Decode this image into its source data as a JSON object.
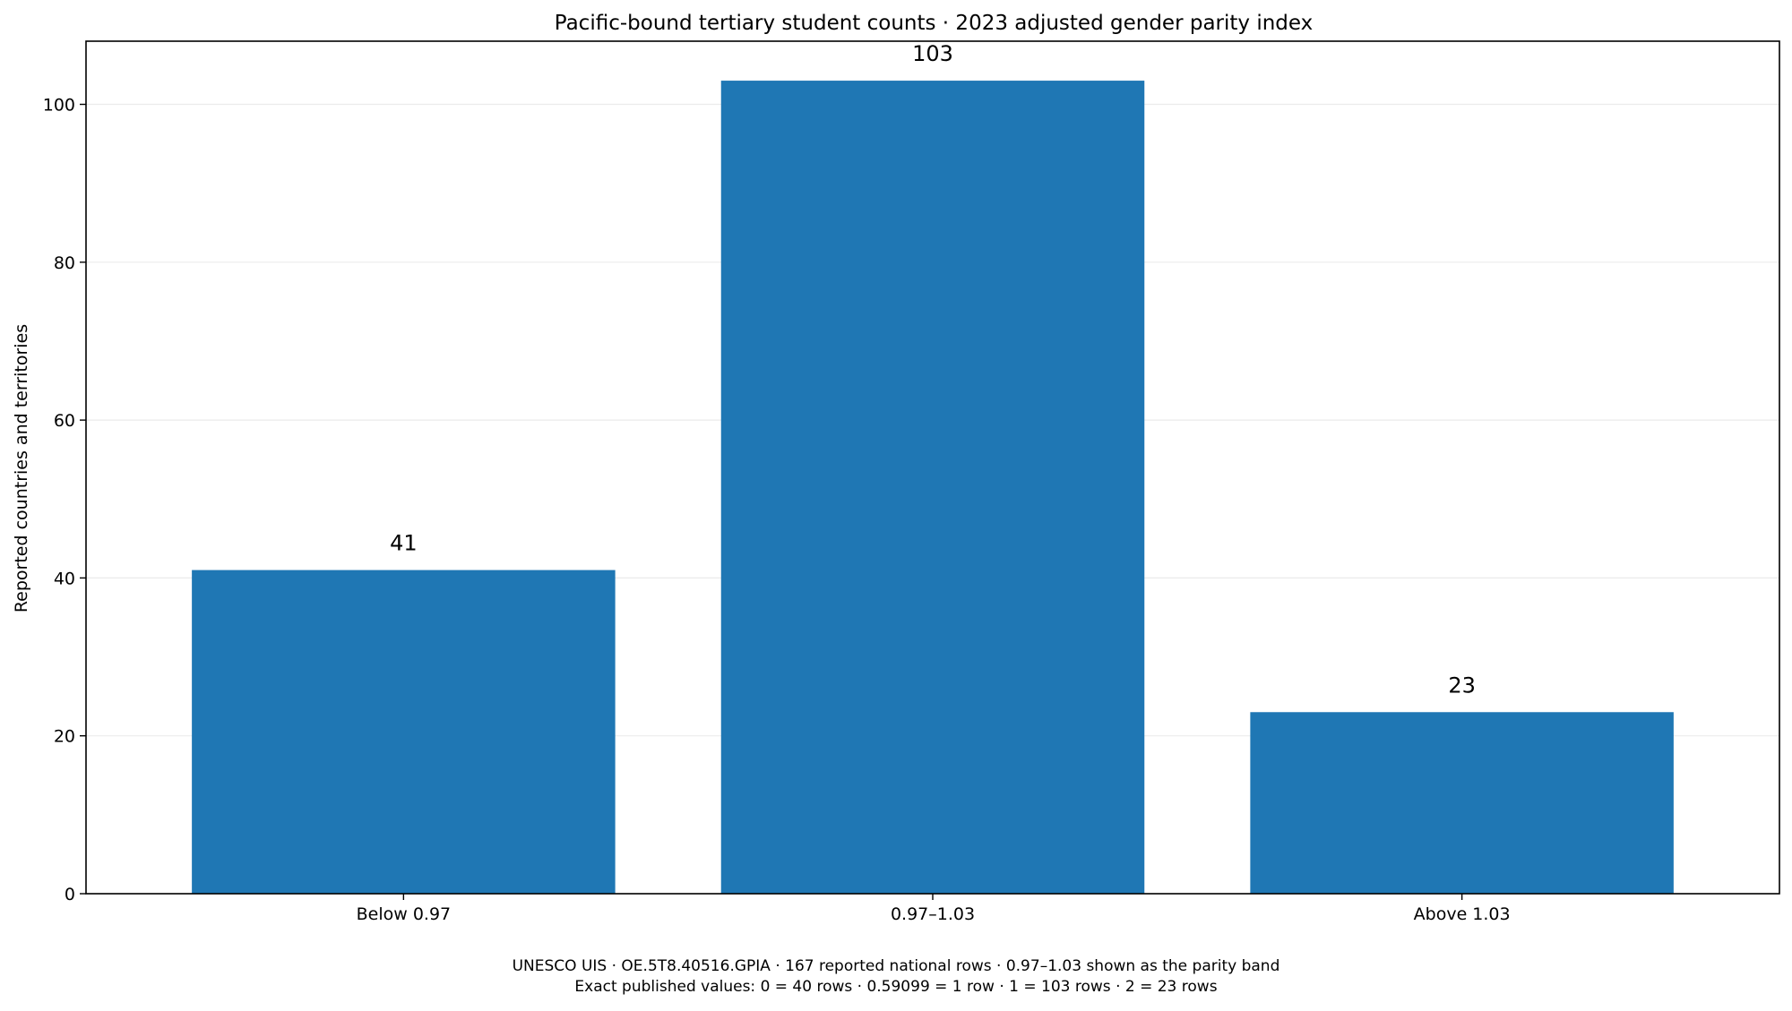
{
  "chart_data": {
    "type": "bar",
    "title": "Pacific-bound tertiary student counts · 2023 adjusted gender parity index",
    "xlabel": "",
    "ylabel": "Reported countries and territories",
    "categories": [
      "Below 0.97",
      "0.97–1.03",
      "Above 1.03"
    ],
    "values": [
      41,
      103,
      23
    ],
    "ylim": [
      0,
      108
    ],
    "yticks": [
      0,
      20,
      40,
      60,
      80,
      100
    ],
    "grid": "horizontal",
    "bar_color": "#1f77b4",
    "grid_color": "#ebebeb",
    "footnotes": [
      "UNESCO UIS · OE.5T8.40516.GPIA · 167 reported national rows · 0.97–1.03 shown as the parity band",
      "Exact published values: 0 = 40 rows · 0.59099 = 1 row · 1 = 103 rows · 2 = 23 rows"
    ]
  }
}
